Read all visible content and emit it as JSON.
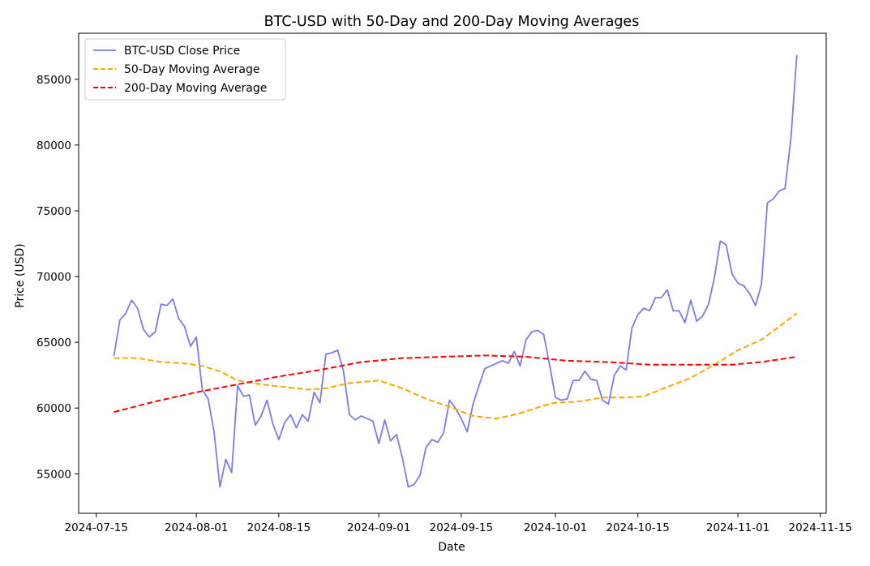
{
  "chart_data": {
    "type": "line",
    "title": "BTC-USD with 50-Day and 200-Day Moving Averages",
    "xlabel": "Date",
    "ylabel": "Price (USD)",
    "xlim": [
      "2024-07-12",
      "2024-11-16"
    ],
    "ylim": [
      52000,
      88500
    ],
    "x_ticks": [
      "2024-07-15",
      "2024-08-01",
      "2024-08-15",
      "2024-09-01",
      "2024-09-15",
      "2024-10-01",
      "2024-10-15",
      "2024-11-01",
      "2024-11-15"
    ],
    "y_ticks": [
      55000,
      60000,
      65000,
      70000,
      75000,
      80000,
      85000
    ],
    "y_tick_labels": [
      "55000",
      "60000",
      "65000",
      "70000",
      "75000",
      "80000",
      "85000"
    ],
    "grid": false,
    "legend_position": "top-left",
    "series": [
      {
        "name": "BTC-USD Close Price",
        "color": "#7b7bf0",
        "style": "solid",
        "points": [
          [
            "2024-07-18",
            64000
          ],
          [
            "2024-07-19",
            66700
          ],
          [
            "2024-07-20",
            67200
          ],
          [
            "2024-07-21",
            68200
          ],
          [
            "2024-07-22",
            67600
          ],
          [
            "2024-07-23",
            66000
          ],
          [
            "2024-07-24",
            65400
          ],
          [
            "2024-07-25",
            65800
          ],
          [
            "2024-07-26",
            67900
          ],
          [
            "2024-07-27",
            67800
          ],
          [
            "2024-07-28",
            68300
          ],
          [
            "2024-07-29",
            66800
          ],
          [
            "2024-07-30",
            66200
          ],
          [
            "2024-07-31",
            64700
          ],
          [
            "2024-08-01",
            65400
          ],
          [
            "2024-08-02",
            61400
          ],
          [
            "2024-08-03",
            60700
          ],
          [
            "2024-08-04",
            58200
          ],
          [
            "2024-08-05",
            54000
          ],
          [
            "2024-08-06",
            56100
          ],
          [
            "2024-08-07",
            55100
          ],
          [
            "2024-08-08",
            61700
          ],
          [
            "2024-08-09",
            60900
          ],
          [
            "2024-08-10",
            61000
          ],
          [
            "2024-08-11",
            58700
          ],
          [
            "2024-08-12",
            59400
          ],
          [
            "2024-08-13",
            60600
          ],
          [
            "2024-08-14",
            58800
          ],
          [
            "2024-08-15",
            57600
          ],
          [
            "2024-08-16",
            58900
          ],
          [
            "2024-08-17",
            59500
          ],
          [
            "2024-08-18",
            58500
          ],
          [
            "2024-08-19",
            59500
          ],
          [
            "2024-08-20",
            59000
          ],
          [
            "2024-08-21",
            61200
          ],
          [
            "2024-08-22",
            60400
          ],
          [
            "2024-08-23",
            64100
          ],
          [
            "2024-08-24",
            64200
          ],
          [
            "2024-08-25",
            64400
          ],
          [
            "2024-08-26",
            62800
          ],
          [
            "2024-08-27",
            59500
          ],
          [
            "2024-08-28",
            59100
          ],
          [
            "2024-08-29",
            59400
          ],
          [
            "2024-08-30",
            59200
          ],
          [
            "2024-08-31",
            59000
          ],
          [
            "2024-09-01",
            57300
          ],
          [
            "2024-09-02",
            59100
          ],
          [
            "2024-09-03",
            57500
          ],
          [
            "2024-09-04",
            58000
          ],
          [
            "2024-09-05",
            56200
          ],
          [
            "2024-09-06",
            54000
          ],
          [
            "2024-09-07",
            54200
          ],
          [
            "2024-09-08",
            54900
          ],
          [
            "2024-09-09",
            57000
          ],
          [
            "2024-09-10",
            57600
          ],
          [
            "2024-09-11",
            57400
          ],
          [
            "2024-09-12",
            58100
          ],
          [
            "2024-09-13",
            60600
          ],
          [
            "2024-09-14",
            60000
          ],
          [
            "2024-09-15",
            59200
          ],
          [
            "2024-09-16",
            58200
          ],
          [
            "2024-09-17",
            60300
          ],
          [
            "2024-09-18",
            61700
          ],
          [
            "2024-09-19",
            63000
          ],
          [
            "2024-09-20",
            63200
          ],
          [
            "2024-09-21",
            63400
          ],
          [
            "2024-09-22",
            63600
          ],
          [
            "2024-09-23",
            63400
          ],
          [
            "2024-09-24",
            64300
          ],
          [
            "2024-09-25",
            63200
          ],
          [
            "2024-09-26",
            65200
          ],
          [
            "2024-09-27",
            65800
          ],
          [
            "2024-09-28",
            65900
          ],
          [
            "2024-09-29",
            65600
          ],
          [
            "2024-09-30",
            63300
          ],
          [
            "2024-10-01",
            60800
          ],
          [
            "2024-10-02",
            60600
          ],
          [
            "2024-10-03",
            60700
          ],
          [
            "2024-10-04",
            62100
          ],
          [
            "2024-10-05",
            62100
          ],
          [
            "2024-10-06",
            62800
          ],
          [
            "2024-10-07",
            62200
          ],
          [
            "2024-10-08",
            62100
          ],
          [
            "2024-10-09",
            60600
          ],
          [
            "2024-10-10",
            60300
          ],
          [
            "2024-10-11",
            62500
          ],
          [
            "2024-10-12",
            63200
          ],
          [
            "2024-10-13",
            62900
          ],
          [
            "2024-10-14",
            66100
          ],
          [
            "2024-10-15",
            67100
          ],
          [
            "2024-10-16",
            67600
          ],
          [
            "2024-10-17",
            67400
          ],
          [
            "2024-10-18",
            68400
          ],
          [
            "2024-10-19",
            68400
          ],
          [
            "2024-10-20",
            69000
          ],
          [
            "2024-10-21",
            67400
          ],
          [
            "2024-10-22",
            67400
          ],
          [
            "2024-10-23",
            66500
          ],
          [
            "2024-10-24",
            68200
          ],
          [
            "2024-10-25",
            66600
          ],
          [
            "2024-10-26",
            67000
          ],
          [
            "2024-10-27",
            67900
          ],
          [
            "2024-10-28",
            69900
          ],
          [
            "2024-10-29",
            72700
          ],
          [
            "2024-10-30",
            72400
          ],
          [
            "2024-10-31",
            70200
          ],
          [
            "2024-11-01",
            69500
          ],
          [
            "2024-11-02",
            69300
          ],
          [
            "2024-11-03",
            68700
          ],
          [
            "2024-11-04",
            67800
          ],
          [
            "2024-11-05",
            69400
          ],
          [
            "2024-11-06",
            75600
          ],
          [
            "2024-11-07",
            75900
          ],
          [
            "2024-11-08",
            76500
          ],
          [
            "2024-11-09",
            76700
          ],
          [
            "2024-11-10",
            80500
          ],
          [
            "2024-11-11",
            86800
          ]
        ]
      },
      {
        "name": "50-Day Moving Average",
        "color": "#ffa500",
        "style": "dashed",
        "points": [
          [
            "2024-07-18",
            63800
          ],
          [
            "2024-07-22",
            63800
          ],
          [
            "2024-07-26",
            63500
          ],
          [
            "2024-07-30",
            63400
          ],
          [
            "2024-08-02",
            63200
          ],
          [
            "2024-08-05",
            62800
          ],
          [
            "2024-08-08",
            62100
          ],
          [
            "2024-08-12",
            61800
          ],
          [
            "2024-08-16",
            61600
          ],
          [
            "2024-08-20",
            61400
          ],
          [
            "2024-08-23",
            61500
          ],
          [
            "2024-08-27",
            61900
          ],
          [
            "2024-09-01",
            62100
          ],
          [
            "2024-09-05",
            61500
          ],
          [
            "2024-09-09",
            60700
          ],
          [
            "2024-09-13",
            60100
          ],
          [
            "2024-09-17",
            59400
          ],
          [
            "2024-09-21",
            59200
          ],
          [
            "2024-09-25",
            59600
          ],
          [
            "2024-09-29",
            60200
          ],
          [
            "2024-10-01",
            60400
          ],
          [
            "2024-10-05",
            60500
          ],
          [
            "2024-10-09",
            60800
          ],
          [
            "2024-10-13",
            60800
          ],
          [
            "2024-10-16",
            60900
          ],
          [
            "2024-10-20",
            61600
          ],
          [
            "2024-10-24",
            62300
          ],
          [
            "2024-10-28",
            63300
          ],
          [
            "2024-11-01",
            64400
          ],
          [
            "2024-11-05",
            65200
          ],
          [
            "2024-11-08",
            66200
          ],
          [
            "2024-11-11",
            67200
          ]
        ]
      },
      {
        "name": "200-Day Moving Average",
        "color": "#ff0000",
        "style": "dashed",
        "points": [
          [
            "2024-07-18",
            59700
          ],
          [
            "2024-07-25",
            60500
          ],
          [
            "2024-08-01",
            61200
          ],
          [
            "2024-08-08",
            61800
          ],
          [
            "2024-08-15",
            62400
          ],
          [
            "2024-08-22",
            62900
          ],
          [
            "2024-08-29",
            63500
          ],
          [
            "2024-09-05",
            63800
          ],
          [
            "2024-09-12",
            63900
          ],
          [
            "2024-09-19",
            64000
          ],
          [
            "2024-09-26",
            63900
          ],
          [
            "2024-10-03",
            63600
          ],
          [
            "2024-10-10",
            63500
          ],
          [
            "2024-10-17",
            63300
          ],
          [
            "2024-10-24",
            63300
          ],
          [
            "2024-10-31",
            63300
          ],
          [
            "2024-11-05",
            63500
          ],
          [
            "2024-11-11",
            63900
          ]
        ]
      }
    ]
  }
}
